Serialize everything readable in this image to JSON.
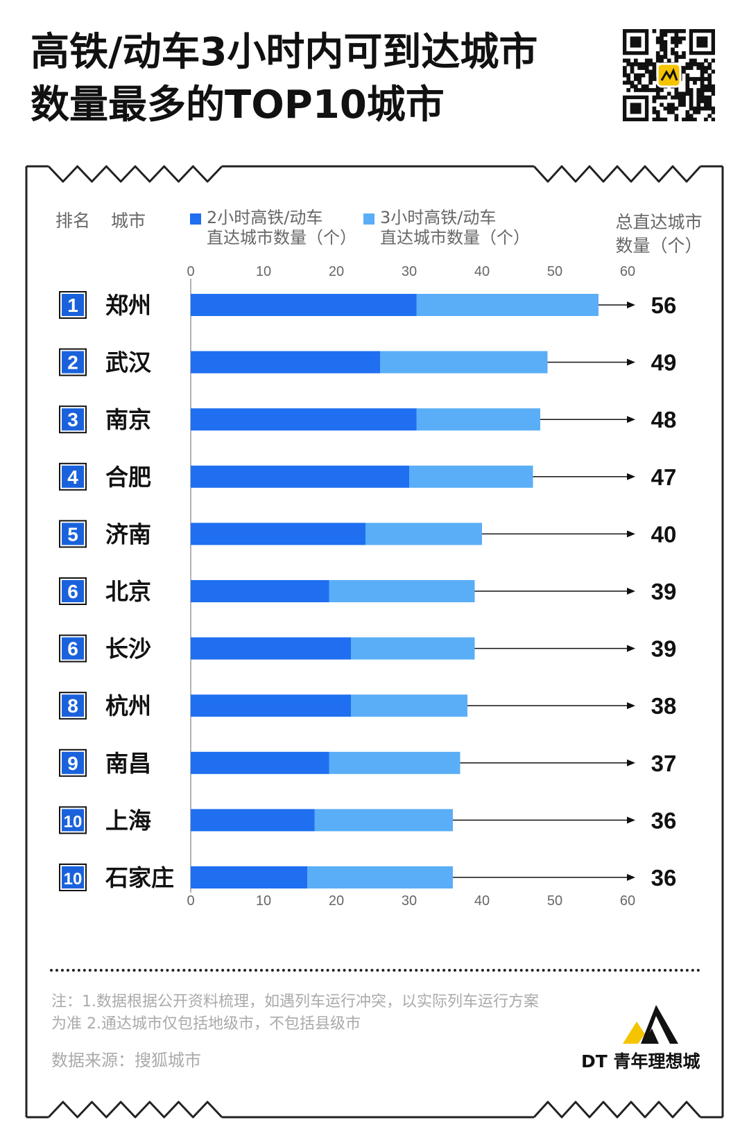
{
  "title": {
    "line1": "高铁/动车3小时内可到达城市",
    "line2": "数量最多的TOP10城市"
  },
  "colors": {
    "bar_2h": "#1f6ff0",
    "bar_3h": "#5aaef7",
    "badge": "#1a62dc",
    "frame": "#222222"
  },
  "headers": {
    "rank": "排名",
    "city": "城市",
    "total_line1": "总直达城市",
    "total_line2": "数量（个）"
  },
  "legend": [
    {
      "line1": "2小时高铁/动车",
      "line2": "直达城市数量（个）",
      "color": "#1f6ff0"
    },
    {
      "line1": "3小时高铁/动车",
      "line2": "直达城市数量（个）",
      "color": "#5aaef7"
    }
  ],
  "chart_data": {
    "type": "bar",
    "orientation": "horizontal",
    "stacked": true,
    "xlim": [
      0,
      60
    ],
    "xticks": [
      0,
      10,
      20,
      30,
      40,
      50,
      60
    ],
    "grid": false,
    "ranks": [
      "1",
      "2",
      "3",
      "4",
      "5",
      "6",
      "6",
      "8",
      "9",
      "10",
      "10"
    ],
    "categories": [
      "郑州",
      "武汉",
      "南京",
      "合肥",
      "济南",
      "北京",
      "长沙",
      "杭州",
      "南昌",
      "上海",
      "石家庄"
    ],
    "series": [
      {
        "name": "2小时高铁/动车直达城市数量（个）",
        "values": [
          31,
          26,
          31,
          30,
          24,
          19,
          22,
          22,
          19,
          17,
          16
        ]
      },
      {
        "name": "3小时高铁/动车直达城市数量（个）",
        "values": [
          25,
          23,
          17,
          17,
          16,
          20,
          17,
          16,
          18,
          19,
          20
        ]
      }
    ],
    "totals": [
      56,
      49,
      48,
      47,
      40,
      39,
      39,
      38,
      37,
      36,
      36
    ]
  },
  "footer": {
    "note_line1": "注：1.数据根据公开资料梳理，如遇列车运行冲突，以实际列车运行方案",
    "note_line2": "为准 2.通达城市仅包括地级市，不包括县级市",
    "source": "数据来源：搜狐城市",
    "brand": "DT 青年理想城"
  }
}
